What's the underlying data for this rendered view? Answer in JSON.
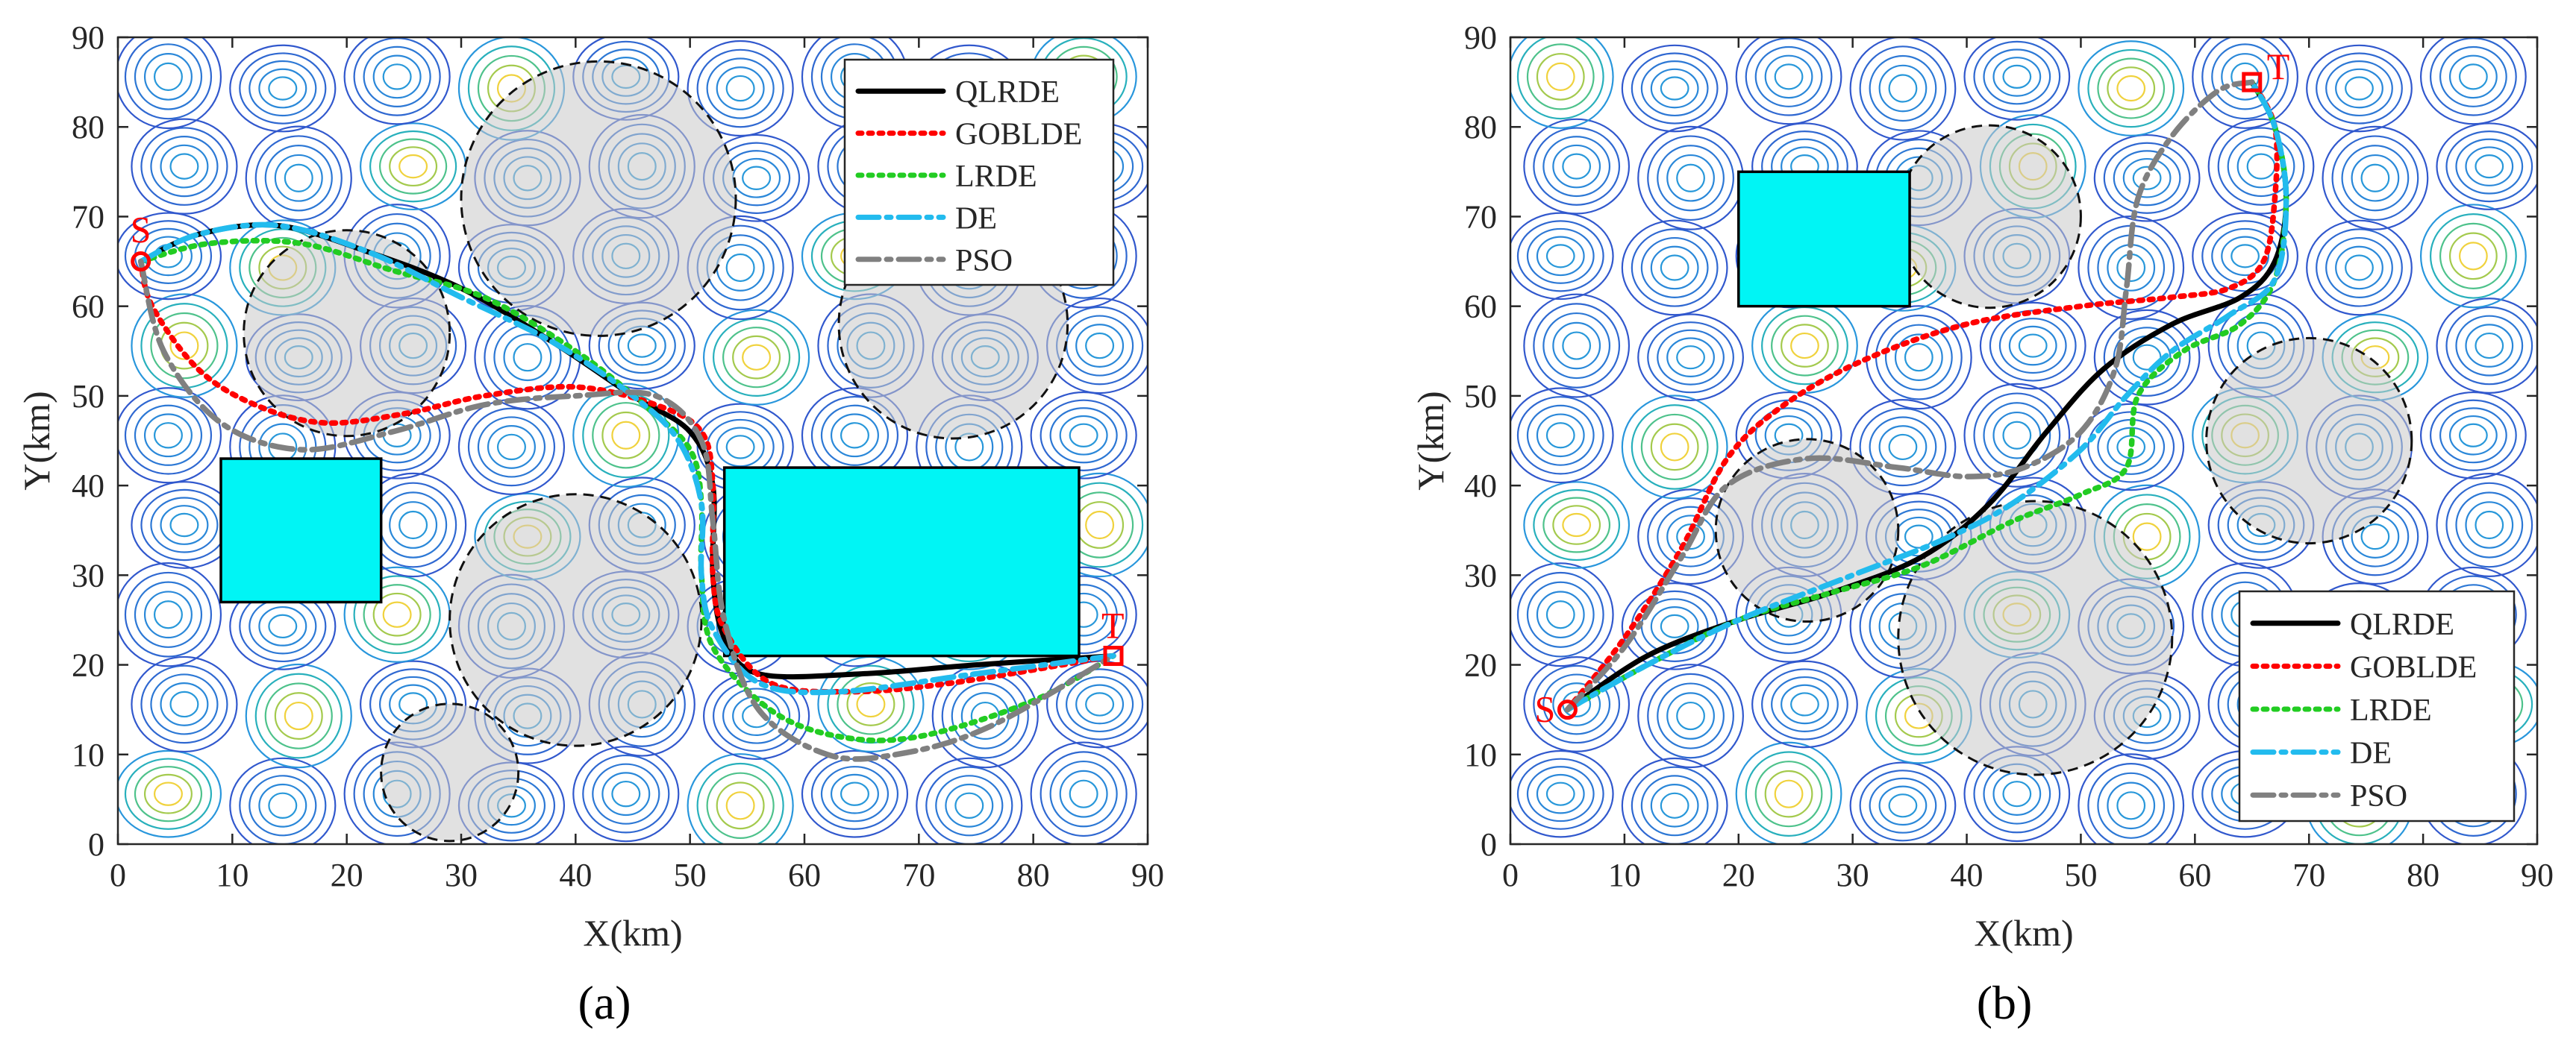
{
  "figure": {
    "panels": [
      "(a)",
      "(b)"
    ]
  },
  "chart_data": [
    {
      "type": "line",
      "panel_label": "(a)",
      "xlabel": "X(km)",
      "ylabel": "Y(km)",
      "xlim": [
        0,
        90
      ],
      "ylim": [
        0,
        90
      ],
      "xticks": [
        0,
        10,
        20,
        30,
        40,
        50,
        60,
        70,
        80,
        90
      ],
      "yticks": [
        0,
        10,
        20,
        30,
        40,
        50,
        60,
        70,
        80,
        90
      ],
      "legend_position": "top-right",
      "start": {
        "label": "S",
        "x": 2,
        "y": 65
      },
      "target": {
        "label": "T",
        "x": 87,
        "y": 21
      },
      "rect_obstacles": [
        {
          "x0": 9,
          "y0": 27,
          "x1": 23,
          "y1": 43
        },
        {
          "x0": 53,
          "y0": 21,
          "x1": 84,
          "y1": 42
        }
      ],
      "circle_threats": [
        {
          "cx": 42,
          "cy": 72,
          "r": 12
        },
        {
          "cx": 20,
          "cy": 57,
          "r": 9
        },
        {
          "cx": 73,
          "cy": 58,
          "r": 10
        },
        {
          "cx": 40,
          "cy": 25,
          "r": 11
        },
        {
          "cx": 29,
          "cy": 8,
          "r": 6
        }
      ],
      "series": [
        {
          "name": "QLRDE",
          "color": "#000000",
          "dash": "solid",
          "points": [
            [
              2,
              65
            ],
            [
              7,
              68
            ],
            [
              14,
              69
            ],
            [
              22,
              66
            ],
            [
              30,
              62
            ],
            [
              38,
              56
            ],
            [
              45,
              50
            ],
            [
              50,
              46
            ],
            [
              52,
              40
            ],
            [
              52,
              30
            ],
            [
              53,
              23
            ],
            [
              56,
              19
            ],
            [
              65,
              19
            ],
            [
              75,
              20
            ],
            [
              87,
              21
            ]
          ]
        },
        {
          "name": "GOBLDE",
          "color": "#ff0000",
          "dash": "dot",
          "points": [
            [
              2,
              65
            ],
            [
              3,
              60
            ],
            [
              7,
              53
            ],
            [
              12,
              49
            ],
            [
              18,
              47
            ],
            [
              25,
              48
            ],
            [
              32,
              50
            ],
            [
              40,
              51
            ],
            [
              47,
              49
            ],
            [
              51,
              46
            ],
            [
              52,
              40
            ],
            [
              52,
              30
            ],
            [
              53,
              24
            ],
            [
              57,
              18
            ],
            [
              64,
              17
            ],
            [
              73,
              18
            ],
            [
              87,
              21
            ]
          ]
        },
        {
          "name": "LRDE",
          "color": "#22cc22",
          "dash": "dot",
          "points": [
            [
              2,
              65
            ],
            [
              8,
              67
            ],
            [
              16,
              67
            ],
            [
              24,
              64
            ],
            [
              32,
              61
            ],
            [
              40,
              55
            ],
            [
              46,
              49
            ],
            [
              50,
              44
            ],
            [
              51,
              38
            ],
            [
              51,
              30
            ],
            [
              52,
              22
            ],
            [
              57,
              15
            ],
            [
              63,
              12
            ],
            [
              70,
              12
            ],
            [
              80,
              16
            ],
            [
              87,
              21
            ]
          ]
        },
        {
          "name": "DE",
          "color": "#22bbee",
          "dash": "dashdot",
          "points": [
            [
              2,
              65
            ],
            [
              7,
              68
            ],
            [
              14,
              69
            ],
            [
              22,
              66
            ],
            [
              30,
              61
            ],
            [
              38,
              56
            ],
            [
              45,
              50
            ],
            [
              49,
              45
            ],
            [
              51,
              38
            ],
            [
              51,
              30
            ],
            [
              52,
              24
            ],
            [
              56,
              18
            ],
            [
              63,
              17
            ],
            [
              75,
              19
            ],
            [
              87,
              21
            ]
          ]
        },
        {
          "name": "PSO",
          "color": "#808080",
          "dash": "dashdot",
          "points": [
            [
              2,
              65
            ],
            [
              4,
              55
            ],
            [
              9,
              47
            ],
            [
              16,
              44
            ],
            [
              24,
              46
            ],
            [
              32,
              49
            ],
            [
              40,
              50
            ],
            [
              47,
              50
            ],
            [
              51,
              45
            ],
            [
              52,
              36
            ],
            [
              53,
              25
            ],
            [
              56,
              15
            ],
            [
              62,
              10
            ],
            [
              68,
              10
            ],
            [
              76,
              13
            ],
            [
              87,
              21
            ]
          ]
        }
      ]
    },
    {
      "type": "line",
      "panel_label": "(b)",
      "xlabel": "X(km)",
      "ylabel": "Y(km)",
      "xlim": [
        0,
        90
      ],
      "ylim": [
        0,
        90
      ],
      "xticks": [
        0,
        10,
        20,
        30,
        40,
        50,
        60,
        70,
        80,
        90
      ],
      "yticks": [
        0,
        10,
        20,
        30,
        40,
        50,
        60,
        70,
        80,
        90
      ],
      "legend_position": "bottom-right",
      "start": {
        "label": "S",
        "x": 5,
        "y": 15
      },
      "target": {
        "label": "T",
        "x": 65,
        "y": 85
      },
      "rect_obstacles": [
        {
          "x0": 20,
          "y0": 60,
          "x1": 35,
          "y1": 75
        }
      ],
      "circle_threats": [
        {
          "cx": 42,
          "cy": 70,
          "r": 8
        },
        {
          "cx": 70,
          "cy": 45,
          "r": 9
        },
        {
          "cx": 26,
          "cy": 35,
          "r": 8
        },
        {
          "cx": 46,
          "cy": 23,
          "r": 12
        }
      ],
      "series": [
        {
          "name": "QLRDE",
          "color": "#000000",
          "dash": "solid",
          "points": [
            [
              5,
              15
            ],
            [
              12,
              21
            ],
            [
              20,
              25
            ],
            [
              28,
              28
            ],
            [
              36,
              32
            ],
            [
              42,
              38
            ],
            [
              47,
              46
            ],
            [
              52,
              53
            ],
            [
              58,
              58
            ],
            [
              64,
              61
            ],
            [
              67,
              65
            ],
            [
              68,
              72
            ],
            [
              67,
              80
            ],
            [
              65,
              85
            ]
          ]
        },
        {
          "name": "GOBLDE",
          "color": "#ff0000",
          "dash": "dot",
          "points": [
            [
              5,
              15
            ],
            [
              10,
              23
            ],
            [
              15,
              33
            ],
            [
              19,
              43
            ],
            [
              24,
              49
            ],
            [
              31,
              54
            ],
            [
              40,
              58
            ],
            [
              50,
              60
            ],
            [
              58,
              61
            ],
            [
              63,
              62
            ],
            [
              66,
              65
            ],
            [
              67,
              72
            ],
            [
              67,
              80
            ],
            [
              65,
              85
            ]
          ]
        },
        {
          "name": "LRDE",
          "color": "#22cc22",
          "dash": "dot",
          "points": [
            [
              5,
              15
            ],
            [
              12,
              20
            ],
            [
              20,
              25
            ],
            [
              28,
              28
            ],
            [
              36,
              31
            ],
            [
              44,
              36
            ],
            [
              50,
              39
            ],
            [
              54,
              42
            ],
            [
              55,
              50
            ],
            [
              59,
              55
            ],
            [
              64,
              58
            ],
            [
              67,
              63
            ],
            [
              68,
              72
            ],
            [
              67,
              80
            ],
            [
              65,
              85
            ]
          ]
        },
        {
          "name": "DE",
          "color": "#22bbee",
          "dash": "dashdot",
          "points": [
            [
              5,
              15
            ],
            [
              12,
              20
            ],
            [
              20,
              25
            ],
            [
              30,
              30
            ],
            [
              38,
              34
            ],
            [
              44,
              38
            ],
            [
              50,
              44
            ],
            [
              54,
              50
            ],
            [
              58,
              55
            ],
            [
              63,
              59
            ],
            [
              67,
              63
            ],
            [
              68,
              72
            ],
            [
              67,
              80
            ],
            [
              65,
              85
            ]
          ]
        },
        {
          "name": "PSO",
          "color": "#808080",
          "dash": "dashdot",
          "points": [
            [
              5,
              15
            ],
            [
              10,
              22
            ],
            [
              15,
              32
            ],
            [
              19,
              40
            ],
            [
              26,
              43
            ],
            [
              34,
              42
            ],
            [
              40,
              41
            ],
            [
              45,
              42
            ],
            [
              50,
              46
            ],
            [
              53,
              53
            ],
            [
              54,
              62
            ],
            [
              55,
              72
            ],
            [
              58,
              79
            ],
            [
              62,
              84
            ],
            [
              65,
              85
            ]
          ]
        }
      ]
    }
  ]
}
